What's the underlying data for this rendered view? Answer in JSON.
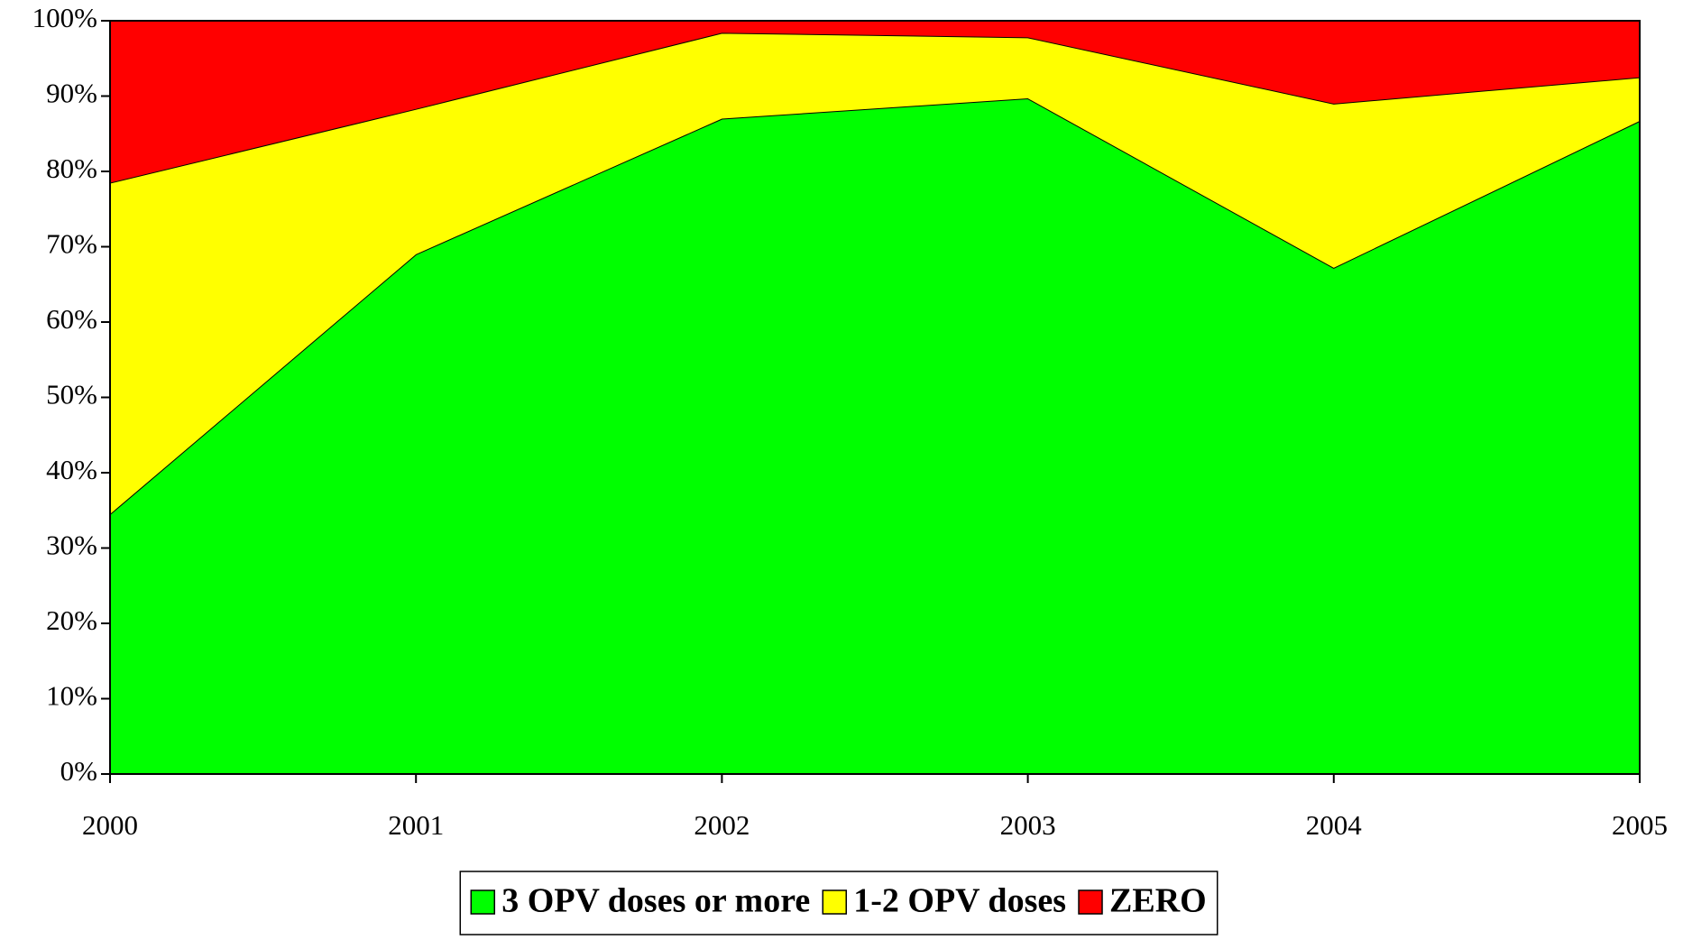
{
  "chart_data": {
    "type": "stacked_area",
    "x": [
      2000,
      2001,
      2002,
      2003,
      2004,
      2005
    ],
    "xlim": [
      2000,
      2005
    ],
    "xticks": [
      2000,
      2001,
      2002,
      2003,
      2004,
      2005
    ],
    "ylim": [
      0,
      100
    ],
    "yticks": [
      {
        "value": 0,
        "label": "0%"
      },
      {
        "value": 10,
        "label": "10%"
      },
      {
        "value": 20,
        "label": "20%"
      },
      {
        "value": 30,
        "label": "30%"
      },
      {
        "value": 40,
        "label": "40%"
      },
      {
        "value": 50,
        "label": "50%"
      },
      {
        "value": 60,
        "label": "60%"
      },
      {
        "value": 70,
        "label": "70%"
      },
      {
        "value": 80,
        "label": "80%"
      },
      {
        "value": 90,
        "label": "90%"
      },
      {
        "value": 100,
        "label": "100%"
      }
    ],
    "series": [
      {
        "name": "3 OPV doses or more",
        "color": "#00ff00",
        "values": [
          34.5,
          69,
          87,
          89.7,
          67.2,
          86.7
        ]
      },
      {
        "name": "1-2 OPV doses",
        "color": "#ffff00",
        "values": [
          44,
          19.3,
          11.4,
          8.1,
          21.8,
          5.8
        ]
      },
      {
        "name": "ZERO",
        "color": "#ff0000",
        "values": [
          21.5,
          11.7,
          1.6,
          2.2,
          11,
          7.5
        ]
      }
    ],
    "legend": "bottom"
  }
}
